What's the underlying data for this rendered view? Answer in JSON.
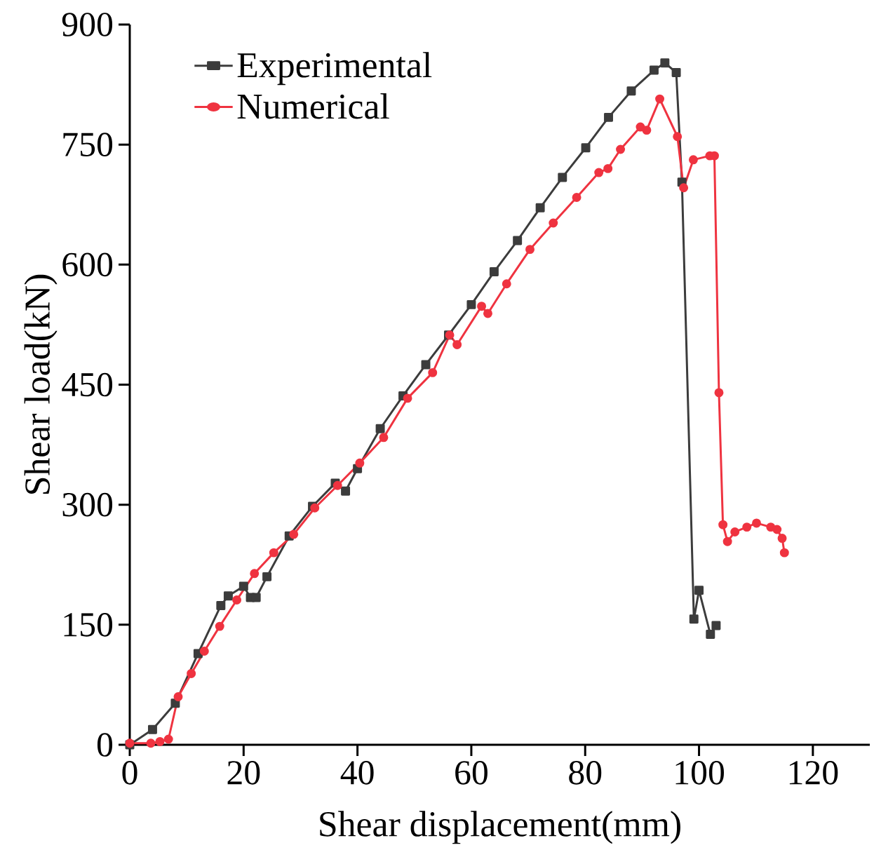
{
  "chart_data": {
    "type": "line",
    "xlabel": "Shear displacement(mm)",
    "ylabel": "Shear load(kN)",
    "xlim": [
      0,
      130
    ],
    "ylim": [
      0,
      900
    ],
    "xticks": [
      0,
      20,
      40,
      60,
      80,
      100,
      120
    ],
    "yticks": [
      0,
      150,
      300,
      450,
      600,
      750,
      900
    ],
    "legend": "top left",
    "grid": false,
    "line_style": "solid",
    "series": [
      {
        "name": "Experimental",
        "color": "#3c3c3c",
        "marker": "square",
        "x": [
          0,
          4,
          8,
          12,
          16,
          17.3,
          20,
          21.2,
          22.2,
          24.1,
          28,
          32.1,
          36.1,
          37.9,
          40,
          44,
          48,
          52,
          56,
          60,
          64,
          68.1,
          72.1,
          76,
          80.1,
          84.1,
          88.1,
          92.1,
          94,
          96,
          97,
          99.1,
          100,
          102,
          103
        ],
        "values": [
          0,
          19,
          52,
          114,
          174,
          186,
          198,
          184,
          184,
          210,
          261,
          298,
          327,
          317,
          345,
          395,
          436,
          475,
          512,
          550,
          591,
          630,
          671,
          709,
          746,
          784,
          817,
          843,
          852,
          840,
          703,
          157,
          193,
          138,
          149
        ]
      },
      {
        "name": "Numerical",
        "color": "#ef3340",
        "marker": "circle",
        "x": [
          0,
          3.7,
          5.3,
          6.8,
          8.5,
          10.8,
          13.1,
          15.8,
          18.8,
          21.9,
          25.3,
          28.8,
          32.5,
          36.5,
          40.4,
          44.6,
          48.8,
          53.2,
          56.2,
          57.5,
          61.8,
          62.9,
          66.2,
          70.3,
          74.4,
          78.5,
          82.4,
          84,
          86.2,
          89.7,
          90.8,
          93.1,
          96.2,
          97.3,
          99,
          101.9,
          102.7,
          103.5,
          104.2,
          105,
          106.3,
          108.4,
          110.1,
          112.6,
          113.7,
          114.6,
          115
        ],
        "values": [
          2,
          2,
          4,
          7,
          60,
          89,
          117,
          148,
          181,
          214,
          240,
          263,
          296,
          324,
          352,
          384,
          433,
          465,
          512,
          500,
          548,
          539,
          576,
          619,
          652,
          684,
          715,
          720,
          744,
          772,
          768,
          807,
          760,
          696,
          731,
          736,
          736,
          440,
          275,
          254,
          266,
          272,
          277,
          272,
          269,
          258,
          240
        ]
      }
    ]
  }
}
